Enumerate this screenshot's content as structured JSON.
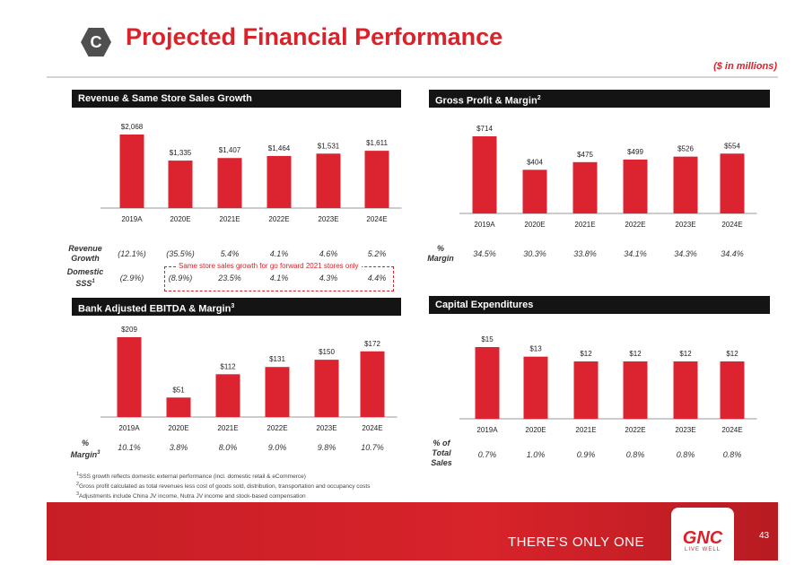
{
  "header": {
    "section_letter": "C",
    "title": "Projected Financial Performance",
    "units": "($ in millions)"
  },
  "panels": {
    "revenue": {
      "title": "Revenue & Same Store Sales Growth"
    },
    "gross": {
      "title": "Gross Profit & Margin",
      "sup": "2"
    },
    "ebitda": {
      "title": "Bank Adjusted EBITDA & Margin",
      "sup": "3"
    },
    "capex": {
      "title": "Capital Expenditures"
    }
  },
  "rows": {
    "revenue_growth": {
      "label_line1": "Revenue",
      "label_line2": "Growth",
      "values": [
        "(12.1%)",
        "(35.5%)",
        "5.4%",
        "4.1%",
        "4.6%",
        "5.2%"
      ]
    },
    "domestic_sss": {
      "label_line1": "Domestic",
      "label_line2": "SSS",
      "label_sup": "1",
      "values": [
        "(2.9%)",
        "(8.9%)",
        "23.5%",
        "4.1%",
        "4.3%",
        "4.4%"
      ]
    },
    "sss_note": "Same store sales growth for go forward 2021 stores only",
    "gross_margin": {
      "label_line1": "%",
      "label_line2": "Margin",
      "values": [
        "34.5%",
        "30.3%",
        "33.8%",
        "34.1%",
        "34.3%",
        "34.4%"
      ]
    },
    "ebitda_margin": {
      "label_line1": "%",
      "label_line2": "Margin",
      "label_sup": "3",
      "values": [
        "10.1%",
        "3.8%",
        "8.0%",
        "9.0%",
        "9.8%",
        "10.7%"
      ]
    },
    "capex_pct": {
      "label_line1": "% of",
      "label_line2": "Total",
      "label_line3": "Sales",
      "values": [
        "0.7%",
        "1.0%",
        "0.9%",
        "0.8%",
        "0.8%",
        "0.8%"
      ]
    }
  },
  "chart_data": [
    {
      "type": "bar",
      "title": "Revenue & Same Store Sales Growth",
      "categories": [
        "2019A",
        "2020E",
        "2021E",
        "2022E",
        "2023E",
        "2024E"
      ],
      "values": [
        2068,
        1335,
        1407,
        1464,
        1531,
        1611
      ],
      "labels": [
        "$2,068",
        "$1,335",
        "$1,407",
        "$1,464",
        "$1,531",
        "$1,611"
      ],
      "ylim": [
        0,
        2068
      ],
      "color": "#dc2430"
    },
    {
      "type": "bar",
      "title": "Gross Profit & Margin",
      "categories": [
        "2019A",
        "2020E",
        "2021E",
        "2022E",
        "2023E",
        "2024E"
      ],
      "values": [
        714,
        404,
        475,
        499,
        526,
        554
      ],
      "labels": [
        "$714",
        "$404",
        "$475",
        "$499",
        "$526",
        "$554"
      ],
      "ylim": [
        0,
        714
      ],
      "color": "#dc2430"
    },
    {
      "type": "bar",
      "title": "Bank Adjusted EBITDA & Margin",
      "categories": [
        "2019A",
        "2020E",
        "2021E",
        "2022E",
        "2023E",
        "2024E"
      ],
      "values": [
        209,
        51,
        112,
        131,
        150,
        172
      ],
      "labels": [
        "$209",
        "$51",
        "$112",
        "$131",
        "$150",
        "$172"
      ],
      "ylim": [
        0,
        209
      ],
      "color": "#dc2430"
    },
    {
      "type": "bar",
      "title": "Capital Expenditures",
      "categories": [
        "2019A",
        "2020E",
        "2021E",
        "2022E",
        "2023E",
        "2024E"
      ],
      "values": [
        15,
        13,
        12,
        12,
        12,
        12
      ],
      "labels": [
        "$15",
        "$13",
        "$12",
        "$12",
        "$12",
        "$12"
      ],
      "ylim": [
        0,
        15
      ],
      "color": "#dc2430"
    }
  ],
  "footnotes": [
    "SSS growth reflects domestic external performance (incl. domestic retail & eCommerce)",
    "Gross profit calculated as total revenues less cost of goods sold, distribution, transportation and occupancy costs",
    "Adjustments include China JV income, Nutra JV income and stock-based compensation"
  ],
  "footnote_marks": [
    "1",
    "2",
    "3"
  ],
  "footer": {
    "slogan": "THERE'S ONLY ONE",
    "logo_text": "GNC",
    "logo_sub": "LIVE WELL",
    "page_number": "43"
  }
}
